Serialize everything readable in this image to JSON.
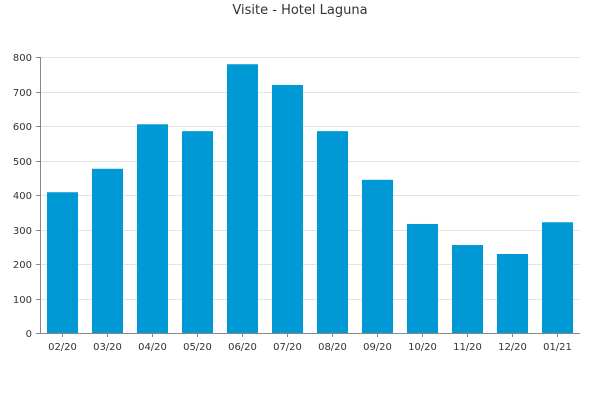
{
  "chart_data": {
    "type": "bar",
    "title": "Visite - Hotel Laguna",
    "xlabel": "",
    "ylabel": "",
    "categories": [
      "02/20",
      "03/20",
      "04/20",
      "05/20",
      "06/20",
      "07/20",
      "08/20",
      "09/20",
      "10/20",
      "11/20",
      "12/20",
      "01/21"
    ],
    "values": [
      408,
      476,
      605,
      585,
      779,
      719,
      585,
      444,
      316,
      255,
      229,
      321
    ],
    "ylim": [
      0,
      800
    ],
    "yticks": [
      0,
      100,
      200,
      300,
      400,
      500,
      600,
      700,
      800
    ],
    "grid": true,
    "bar_color": "#0099d6"
  }
}
